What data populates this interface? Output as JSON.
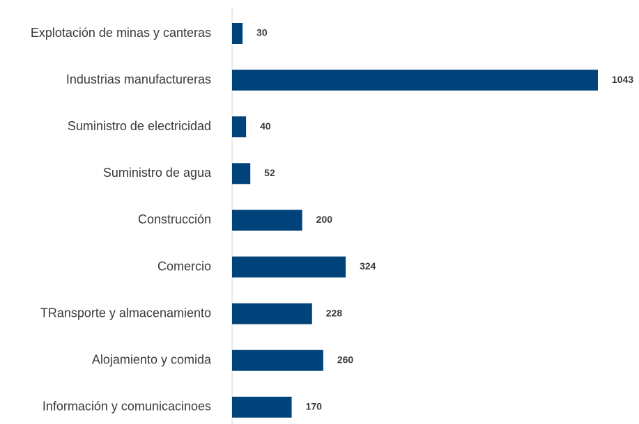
{
  "chart_data": {
    "type": "bar",
    "orientation": "horizontal",
    "categories": [
      "Explotación de minas y canteras",
      "Industrias manufactureras",
      "Suministro de electricidad",
      "Suministro de agua",
      "Construcción",
      "Comercio",
      "TRansporte y almacenamiento",
      "Alojamiento y comida",
      "Información y comunicacinoes"
    ],
    "values": [
      30,
      1043,
      40,
      52,
      200,
      324,
      228,
      260,
      170
    ],
    "color": "#00427a"
  }
}
